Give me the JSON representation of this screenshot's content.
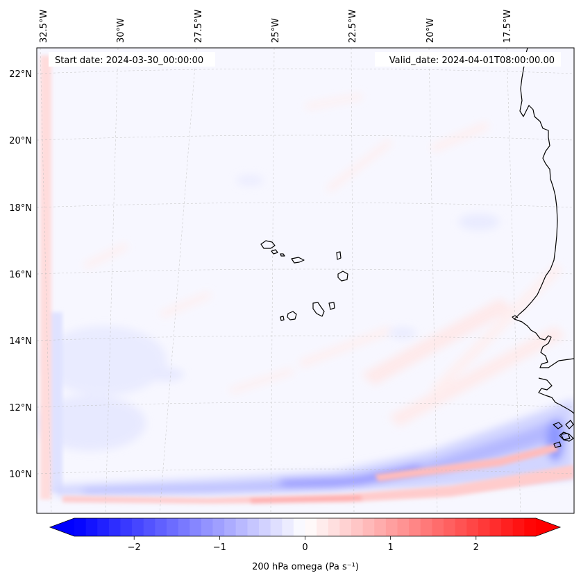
{
  "map": {
    "start_date": "Start date: 2024-03-30_00:00:00",
    "valid_date": "Valid_date: 2024-04-01T08:00:00.00",
    "lon_labels": [
      {
        "text": "32.5°W",
        "lon": -32.5
      },
      {
        "text": "30°W",
        "lon": -30
      },
      {
        "text": "27.5°W",
        "lon": -27.5
      },
      {
        "text": "25°W",
        "lon": -25
      },
      {
        "text": "22.5°W",
        "lon": -22.5
      },
      {
        "text": "20°W",
        "lon": -20
      },
      {
        "text": "17.5°W",
        "lon": -17.5
      }
    ],
    "lat_labels": [
      {
        "text": "22°N",
        "lat": 22
      },
      {
        "text": "20°N",
        "lat": 20
      },
      {
        "text": "18°N",
        "lat": 18
      },
      {
        "text": "16°N",
        "lat": 16
      },
      {
        "text": "14°N",
        "lat": 14
      },
      {
        "text": "12°N",
        "lat": 12
      },
      {
        "text": "10°N",
        "lat": 10
      }
    ],
    "field_colors": {
      "background": "#f7f7ff",
      "weak_pos": "#ffeeee",
      "weak_neg": "#e6e8ff",
      "mid_neg": "#c9ccff",
      "strong_neg": "#8c8cff",
      "mid_pos": "#ffc2c2",
      "strong_pos": "#ff9a9a"
    }
  },
  "colorbar": {
    "label": "200 hPa omega (Pa s⁻¹)",
    "min": -2.7,
    "max": 2.7,
    "ticks": [
      {
        "value": -2,
        "text": "−2"
      },
      {
        "value": -1,
        "text": "−1"
      },
      {
        "value": 0,
        "text": "0"
      },
      {
        "value": 1,
        "text": "1"
      },
      {
        "value": 2,
        "text": "2"
      }
    ],
    "low_color": "#0000ff",
    "high_color": "#ff0000"
  }
}
